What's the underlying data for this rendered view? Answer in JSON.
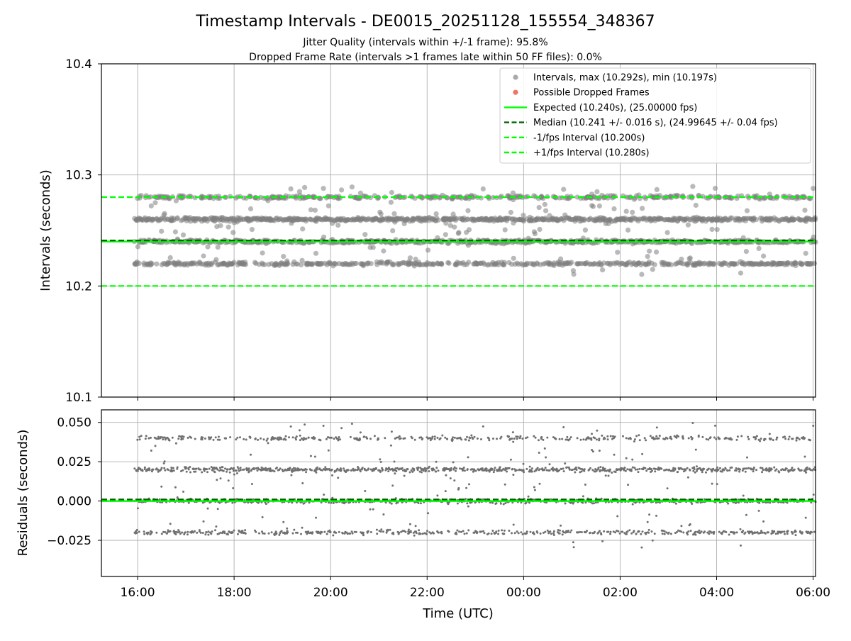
{
  "figure": {
    "title": "Timestamp Intervals - DE0015_20251128_155554_348367",
    "subtitle_jitter": "Jitter Quality (intervals within +/-1 frame): 95.8%",
    "subtitle_dropped": "Dropped Frame Rate (intervals >1 frames late within 50 FF files): 0.0%",
    "colors": {
      "points": "#808080",
      "dropped": "#f0645a",
      "expected": "#00ff00",
      "median": "#006400",
      "fps_band": "#00ff00",
      "grid": "#b0b0b0"
    }
  },
  "chart_data": [
    {
      "type": "scatter",
      "panel": "top",
      "ylabel": "Intervals (seconds)",
      "ylim": [
        10.1,
        10.4
      ],
      "yticks": [
        "10.1",
        "10.2",
        "10.3",
        "10.4"
      ],
      "grid": true,
      "legend_position": "top-right",
      "x_range": [
        "15:15",
        "06:03"
      ],
      "x_data_start": "15:56",
      "x_data_end": "06:03",
      "legend": [
        {
          "label": "Intervals, max (10.292s), min (10.197s)",
          "kind": "point",
          "color": "#a0a0a0"
        },
        {
          "label": "Possible Dropped Frames",
          "kind": "point",
          "color": "#f0645a"
        },
        {
          "label": "Expected (10.240s), (25.00000 fps)",
          "kind": "solid",
          "color": "#00ff00"
        },
        {
          "label": "Median (10.241 +/- 0.016 s), (24.99645 +/- 0.04 fps)",
          "kind": "dashed",
          "color": "#006400"
        },
        {
          "label": "-1/fps Interval (10.200s)",
          "kind": "dashed",
          "color": "#00ff00"
        },
        {
          "label": "+1/fps Interval (10.280s)",
          "kind": "dashed",
          "color": "#00ff00"
        }
      ],
      "reference_lines": {
        "expected": 10.24,
        "median": 10.241,
        "minus_fps": 10.2,
        "plus_fps": 10.28
      },
      "interval_levels": [
        10.22,
        10.24,
        10.26,
        10.28
      ],
      "level_weights": [
        0.2,
        0.3,
        0.33,
        0.17
      ],
      "max": 10.292,
      "min": 10.197,
      "dropped_frames": []
    },
    {
      "type": "scatter",
      "panel": "bottom",
      "ylabel": "Residuals (seconds)",
      "xlabel": "Time (UTC)",
      "ylim": [
        -0.048,
        0.058
      ],
      "yticks": [
        "−0.025",
        "0.000",
        "0.025",
        "0.050"
      ],
      "ytick_values": [
        -0.025,
        0.0,
        0.025,
        0.05
      ],
      "xticks": [
        "16:00",
        "18:00",
        "20:00",
        "22:00",
        "00:00",
        "02:00",
        "04:00",
        "06:00"
      ],
      "grid": true,
      "reference_lines": {
        "expected": 0.0,
        "median": 0.001
      },
      "residual_levels": [
        -0.02,
        0.0,
        0.02,
        0.04
      ],
      "max": 0.052,
      "min": -0.043
    }
  ]
}
